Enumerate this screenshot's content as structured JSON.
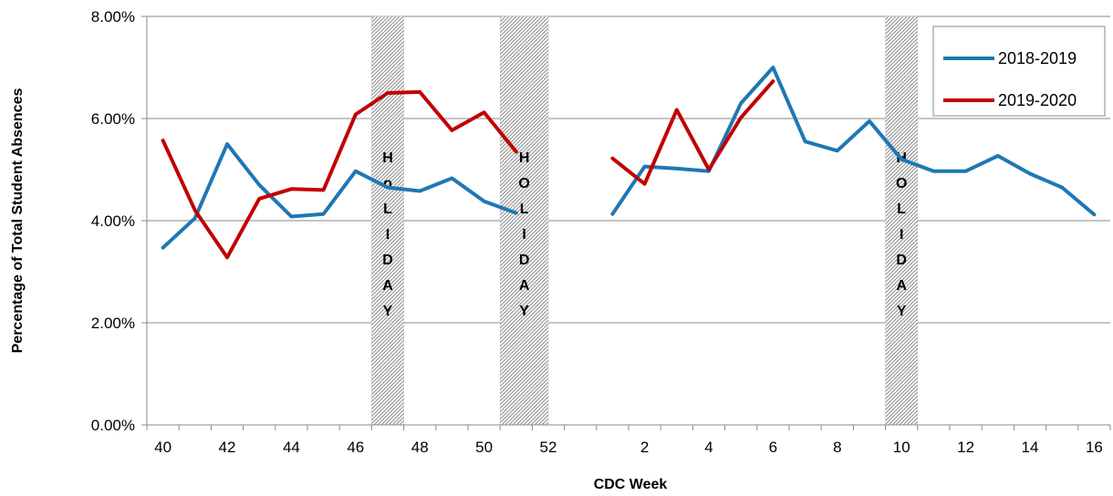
{
  "chart_data": {
    "type": "line",
    "xlabel": "CDC Week",
    "ylabel": "Percentage of Total Student Absences",
    "ylim": [
      0,
      8
    ],
    "yticks": [
      "0.00%",
      "2.00%",
      "4.00%",
      "6.00%",
      "8.00%"
    ],
    "xticks": [
      "40",
      "42",
      "44",
      "46",
      "48",
      "50",
      "52",
      "2",
      "4",
      "6",
      "8",
      "10",
      "12",
      "14",
      "16"
    ],
    "categories": [
      "40",
      "41",
      "42",
      "43",
      "44",
      "45",
      "46",
      "47",
      "48",
      "49",
      "50",
      "51",
      "52",
      "53",
      "1",
      "2",
      "3",
      "4",
      "5",
      "6",
      "7",
      "8",
      "9",
      "10",
      "11",
      "12",
      "13",
      "14",
      "15",
      "16"
    ],
    "series": [
      {
        "name": "2018-2019",
        "color": "#1f77b4",
        "values": [
          3.47,
          4.05,
          5.5,
          4.7,
          4.08,
          4.13,
          4.97,
          4.65,
          4.58,
          4.83,
          4.38,
          4.15,
          null,
          null,
          4.13,
          5.06,
          5.02,
          4.97,
          6.3,
          7.0,
          5.55,
          5.37,
          5.95,
          5.2,
          4.97,
          4.97,
          5.27,
          4.92,
          4.65,
          4.12
        ]
      },
      {
        "name": "2019-2020",
        "color": "#c00000",
        "values": [
          5.57,
          4.2,
          3.28,
          4.43,
          4.62,
          4.6,
          6.08,
          6.5,
          6.52,
          5.77,
          6.12,
          5.35,
          null,
          null,
          5.22,
          4.72,
          6.17,
          5.0,
          6.02,
          6.73,
          null,
          null,
          null,
          null,
          null,
          null,
          null,
          null,
          null,
          null
        ]
      }
    ],
    "holiday_bands": [
      {
        "from": 46.5,
        "to": 47.5,
        "letters": [
          "H",
          "o",
          "L",
          "I",
          "D",
          "A",
          "Y"
        ]
      },
      {
        "from": 50.5,
        "to": 52.0,
        "letters": [
          "H",
          "O",
          "L",
          "I",
          "D",
          "A",
          "Y"
        ]
      },
      {
        "from": 9.5,
        "to": 10.5,
        "letters": [
          "H",
          "O",
          "L",
          "I",
          "D",
          "A",
          "Y"
        ]
      }
    ],
    "legend_position": "top-right",
    "grid": true
  }
}
